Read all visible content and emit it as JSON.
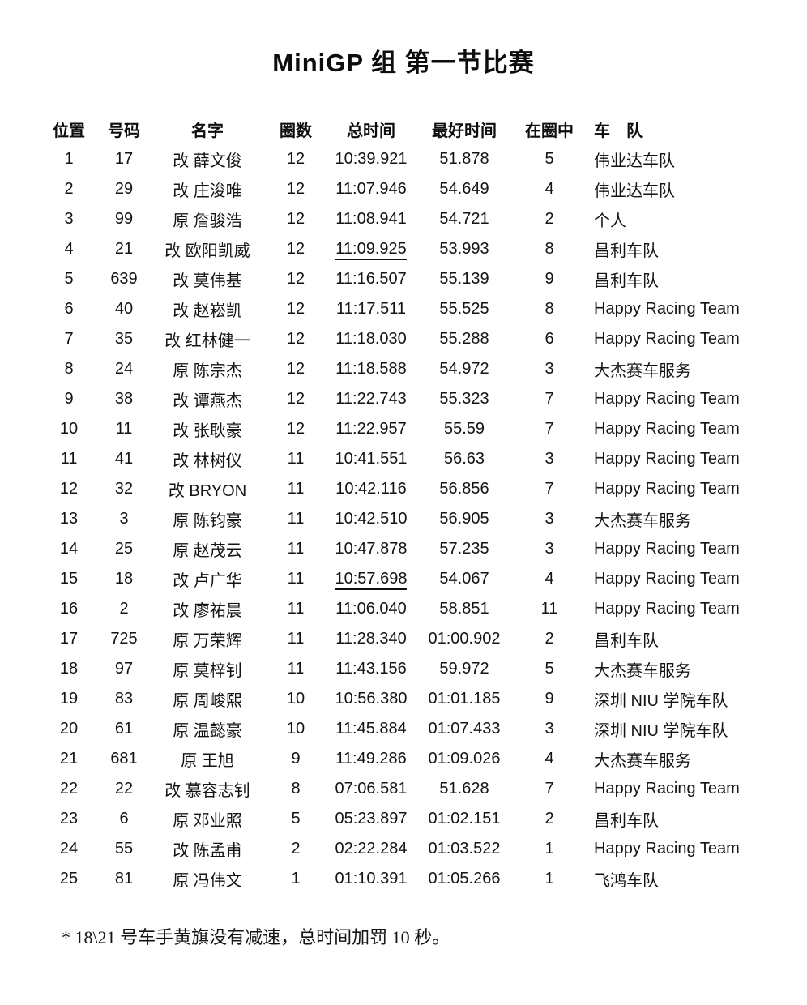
{
  "title": "MiniGP 组 第一节比赛",
  "table": {
    "headers": [
      "位置",
      "号码",
      "名字",
      "圈数",
      "总时间",
      "最好时间",
      "在圈中",
      "车　队"
    ],
    "rows": [
      {
        "position": "1",
        "number": "17",
        "rider": "改 薛文俊",
        "laps": "12",
        "total_time": "10:39.921",
        "best_time": "51.878",
        "in_lap": "5",
        "team": "伟业达车队",
        "penalty_underline": false
      },
      {
        "position": "2",
        "number": "29",
        "rider": "改 庄浚唯",
        "laps": "12",
        "total_time": "11:07.946",
        "best_time": "54.649",
        "in_lap": "4",
        "team": "伟业达车队",
        "penalty_underline": false
      },
      {
        "position": "3",
        "number": "99",
        "rider": "原 詹骏浩",
        "laps": "12",
        "total_time": "11:08.941",
        "best_time": "54.721",
        "in_lap": "2",
        "team": "个人",
        "penalty_underline": false
      },
      {
        "position": "4",
        "number": "21",
        "rider": "改 欧阳凯威",
        "laps": "12",
        "total_time": "11:09.925",
        "best_time": "53.993",
        "in_lap": "8",
        "team": "昌利车队",
        "penalty_underline": true
      },
      {
        "position": "5",
        "number": "639",
        "rider": "改 莫伟基",
        "laps": "12",
        "total_time": "11:16.507",
        "best_time": "55.139",
        "in_lap": "9",
        "team": "昌利车队",
        "penalty_underline": false
      },
      {
        "position": "6",
        "number": "40",
        "rider": "改 赵崧凯",
        "laps": "12",
        "total_time": "11:17.511",
        "best_time": "55.525",
        "in_lap": "8",
        "team": "Happy Racing Team",
        "penalty_underline": false
      },
      {
        "position": "7",
        "number": "35",
        "rider": "改 红林健一",
        "laps": "12",
        "total_time": "11:18.030",
        "best_time": "55.288",
        "in_lap": "6",
        "team": "Happy Racing Team",
        "penalty_underline": false
      },
      {
        "position": "8",
        "number": "24",
        "rider": "原 陈宗杰",
        "laps": "12",
        "total_time": "11:18.588",
        "best_time": "54.972",
        "in_lap": "3",
        "team": "大杰赛车服务",
        "penalty_underline": false
      },
      {
        "position": "9",
        "number": "38",
        "rider": "改 谭燕杰",
        "laps": "12",
        "total_time": "11:22.743",
        "best_time": "55.323",
        "in_lap": "7",
        "team": "Happy Racing Team",
        "penalty_underline": false
      },
      {
        "position": "10",
        "number": "11",
        "rider": "改 张耿豪",
        "laps": "12",
        "total_time": "11:22.957",
        "best_time": "55.59",
        "in_lap": "7",
        "team": "Happy Racing Team",
        "penalty_underline": false
      },
      {
        "position": "11",
        "number": "41",
        "rider": "改 林树仪",
        "laps": "11",
        "total_time": "10:41.551",
        "best_time": "56.63",
        "in_lap": "3",
        "team": "Happy Racing Team",
        "penalty_underline": false
      },
      {
        "position": "12",
        "number": "32",
        "rider": "改 BRYON",
        "laps": "11",
        "total_time": "10:42.116",
        "best_time": "56.856",
        "in_lap": "7",
        "team": "Happy Racing Team",
        "penalty_underline": false
      },
      {
        "position": "13",
        "number": "3",
        "rider": "原 陈钧豪",
        "laps": "11",
        "total_time": "10:42.510",
        "best_time": "56.905",
        "in_lap": "3",
        "team": "大杰赛车服务",
        "penalty_underline": false
      },
      {
        "position": "14",
        "number": "25",
        "rider": "原 赵茂云",
        "laps": "11",
        "total_time": "10:47.878",
        "best_time": "57.235",
        "in_lap": "3",
        "team": "Happy Racing Team",
        "penalty_underline": false
      },
      {
        "position": "15",
        "number": "18",
        "rider": "改 卢广华",
        "laps": "11",
        "total_time": "10:57.698",
        "best_time": "54.067",
        "in_lap": "4",
        "team": "Happy Racing Team",
        "penalty_underline": true
      },
      {
        "position": "16",
        "number": "2",
        "rider": "改 廖祐晨",
        "laps": "11",
        "total_time": "11:06.040",
        "best_time": "58.851",
        "in_lap": "11",
        "team": "Happy Racing Team",
        "penalty_underline": false
      },
      {
        "position": "17",
        "number": "725",
        "rider": "原 万荣辉",
        "laps": "11",
        "total_time": "11:28.340",
        "best_time": "01:00.902",
        "in_lap": "2",
        "team": "昌利车队",
        "penalty_underline": false
      },
      {
        "position": "18",
        "number": "97",
        "rider": "原 莫梓钊",
        "laps": "11",
        "total_time": "11:43.156",
        "best_time": "59.972",
        "in_lap": "5",
        "team": "大杰赛车服务",
        "penalty_underline": false
      },
      {
        "position": "19",
        "number": "83",
        "rider": "原 周峻熙",
        "laps": "10",
        "total_time": "10:56.380",
        "best_time": "01:01.185",
        "in_lap": "9",
        "team": "深圳 NIU 学院车队",
        "penalty_underline": false
      },
      {
        "position": "20",
        "number": "61",
        "rider": "原 温懿豪",
        "laps": "10",
        "total_time": "11:45.884",
        "best_time": "01:07.433",
        "in_lap": "3",
        "team": "深圳 NIU 学院车队",
        "penalty_underline": false
      },
      {
        "position": "21",
        "number": "681",
        "rider": "原 王旭",
        "laps": "9",
        "total_time": "11:49.286",
        "best_time": "01:09.026",
        "in_lap": "4",
        "team": "大杰赛车服务",
        "penalty_underline": false
      },
      {
        "position": "22",
        "number": "22",
        "rider": "改 慕容志钊",
        "laps": "8",
        "total_time": "07:06.581",
        "best_time": "51.628",
        "in_lap": "7",
        "team": "Happy Racing Team",
        "penalty_underline": false
      },
      {
        "position": "23",
        "number": "6",
        "rider": "原 邓业照",
        "laps": "5",
        "total_time": "05:23.897",
        "best_time": "01:02.151",
        "in_lap": "2",
        "team": "昌利车队",
        "penalty_underline": false
      },
      {
        "position": "24",
        "number": "55",
        "rider": "改 陈孟甫",
        "laps": "2",
        "total_time": "02:22.284",
        "best_time": "01:03.522",
        "in_lap": "1",
        "team": "Happy Racing Team",
        "penalty_underline": false
      },
      {
        "position": "25",
        "number": "81",
        "rider": "原 冯伟文",
        "laps": "1",
        "total_time": "01:10.391",
        "best_time": "01:05.266",
        "in_lap": "1",
        "team": "飞鸿车队",
        "penalty_underline": false
      }
    ]
  },
  "footnote": "* 18\\21 号车手黄旗没有减速，总时间加罚 10 秒。"
}
